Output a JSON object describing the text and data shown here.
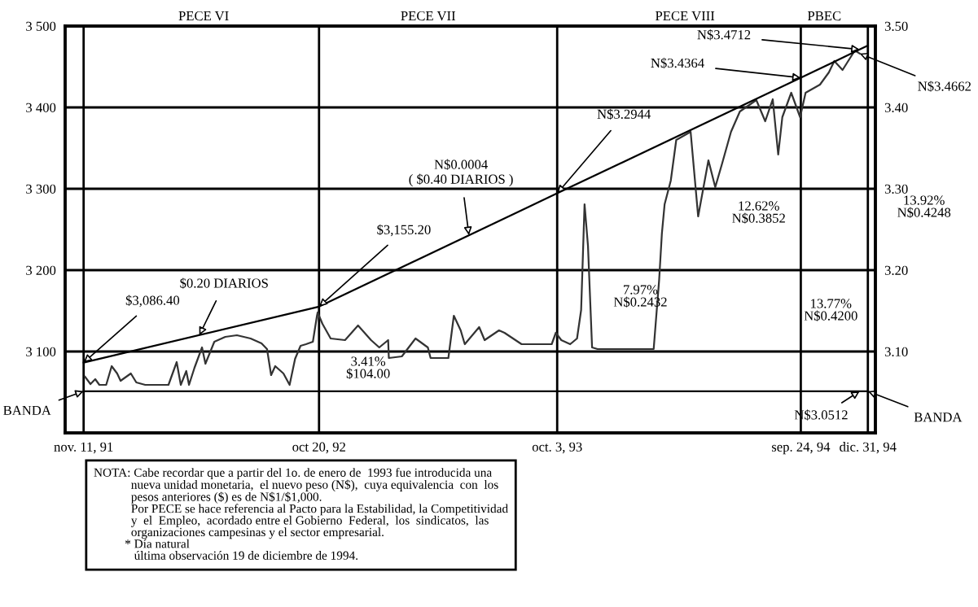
{
  "chart_data": {
    "type": "line",
    "xlim": [
      "1991-10-15",
      "1995-01-11"
    ],
    "xticks": [
      {
        "value": "1991-11-11",
        "label": "nov. 11, 91"
      },
      {
        "value": "1992-10-20",
        "label": "oct 20, 92"
      },
      {
        "value": "1993-10-03",
        "label": "oct. 3, 93"
      },
      {
        "value": "1994-09-24",
        "label": "sep. 24, 94"
      },
      {
        "value": "1994-12-31",
        "label": "dic. 31, 94"
      }
    ],
    "ylim": [
      3000,
      3500
    ],
    "yticks": [
      {
        "value": 3100,
        "label": "3 100"
      },
      {
        "value": 3200,
        "label": "3 200"
      },
      {
        "value": 3300,
        "label": "3 300"
      },
      {
        "value": 3400,
        "label": "3 400"
      },
      {
        "value": 3500,
        "label": "3 500"
      }
    ],
    "y2lim": [
      3.0,
      3.5
    ],
    "y2ticks": [
      {
        "value": 3.1,
        "label": "3.10"
      },
      {
        "value": 3.2,
        "label": "3.20"
      },
      {
        "value": 3.3,
        "label": "3.30"
      },
      {
        "value": 3.4,
        "label": "3.40"
      },
      {
        "value": 3.5,
        "label": "3.50"
      }
    ],
    "grid": true,
    "series": [
      {
        "color": "#333333",
        "x": [
          "1991-11-13",
          "1991-11-21",
          "1991-11-28",
          "1991-12-04",
          "1991-12-14",
          "1991-12-22",
          "1991-12-30",
          "1992-01-04",
          "1992-01-19",
          "1992-01-27",
          "1992-02-09",
          "1992-03-14",
          "1992-03-26",
          "1992-04-01",
          "1992-04-09",
          "1992-04-13",
          "1992-04-21",
          "1992-05-02",
          "1992-05-07",
          "1992-05-20",
          "1992-06-05",
          "1992-06-22",
          "1992-07-12",
          "1992-07-28",
          "1992-08-05",
          "1992-08-11",
          "1992-08-17",
          "1992-08-29",
          "1992-09-07",
          "1992-09-15",
          "1992-09-23",
          "1992-10-01",
          "1992-10-11",
          "1992-10-17",
          "1992-10-18",
          "1992-10-25",
          "1992-11-06",
          "1992-11-27",
          "1992-12-16",
          "1993-01-04",
          "1993-01-16",
          "1993-01-29",
          "1993-01-30",
          "1993-02-18",
          "1993-03-10",
          "1993-03-28",
          "1993-04-01",
          "1993-04-27",
          "1993-05-05",
          "1993-05-15",
          "1993-05-21",
          "1993-06-11",
          "1993-06-19",
          "1993-07-10",
          "1993-07-18",
          "1993-08-12",
          "1993-09-06",
          "1993-09-25",
          "1993-10-01",
          "1993-10-09",
          "1993-10-22",
          "1993-11-01",
          "1993-11-07",
          "1993-11-12",
          "1993-11-17",
          "1993-11-23",
          "1993-12-01",
          "1994-01-14",
          "1994-02-21",
          "1994-03-01",
          "1994-03-05",
          "1994-03-09",
          "1994-03-18",
          "1994-03-26",
          "1994-04-16",
          "1994-04-27",
          "1994-05-12",
          "1994-05-22",
          "1994-06-01",
          "1994-06-14",
          "1994-06-27",
          "1994-07-21",
          "1994-08-03",
          "1994-08-14",
          "1994-08-22",
          "1994-08-28",
          "1994-09-10",
          "1994-09-23",
          "1994-10-01",
          "1994-10-22",
          "1994-11-04",
          "1994-11-12",
          "1994-11-24",
          "1994-12-12",
          "1994-12-19"
        ],
        "values": [
          3069,
          3060,
          3066,
          3059,
          3059,
          3082,
          3073,
          3064,
          3073,
          3062,
          3059,
          3059,
          3087,
          3059,
          3076,
          3059,
          3080,
          3105,
          3085,
          3112,
          3118,
          3120,
          3116,
          3110,
          3103,
          3071,
          3082,
          3073,
          3059,
          3091,
          3107,
          3109,
          3112,
          3144,
          3148,
          3134,
          3116,
          3114,
          3132,
          3114,
          3105,
          3114,
          3092,
          3094,
          3116,
          3105,
          3092,
          3092,
          3144,
          3126,
          3109,
          3130,
          3114,
          3126,
          3123,
          3109,
          3109,
          3109,
          3123,
          3114,
          3109,
          3116,
          3151,
          3281,
          3230,
          3105,
          3103,
          3103,
          3103,
          3188,
          3245,
          3281,
          3310,
          3360,
          3370,
          3266,
          3335,
          3302,
          3331,
          3370,
          3395,
          3409,
          3383,
          3410,
          3342,
          3388,
          3418,
          3388,
          3418,
          3428,
          3443,
          3457,
          3446,
          3470,
          3466.2
        ]
      },
      {
        "color": "#000000",
        "x": [
          "1991-11-11",
          "1992-10-20",
          "1993-10-03",
          "1994-09-24",
          "1994-12-19",
          "1994-12-31"
        ],
        "values": [
          3086.4,
          3155.2,
          3294.4,
          3436.4,
          3471.2,
          3476.0
        ]
      },
      {
        "color": "#000000",
        "x": [
          "1991-11-11",
          "1994-12-31"
        ],
        "values": [
          3051.2,
          3051.2
        ]
      }
    ],
    "annotations": [
      {
        "text": "$3,086.40",
        "x": "1991-11-11",
        "y": 3086.4
      },
      {
        "text": "$0.20 DIARIOS",
        "x": "1992-04-28",
        "y": 3120
      },
      {
        "text": "$3,155.20",
        "x": "1992-10-20",
        "y": 3155.2
      },
      {
        "text": "N$0.0004\n( $0.40 DIARIOS )",
        "x": "1993-05-27",
        "y": 3243
      },
      {
        "text": "N$3.2944",
        "x": "1993-10-03",
        "y": 3294.4
      },
      {
        "text": "N$3.4364",
        "x": "1994-09-24",
        "y": 3436.4
      },
      {
        "text": "N$3.4712",
        "x": "1994-12-19",
        "y": 3471.2
      },
      {
        "text": "N$3.4662",
        "x": "1994-12-19",
        "y": 3466.2
      },
      {
        "text": "N$3.0512",
        "x": "1994-12-19",
        "y": 3051.2
      },
      {
        "text": "BANDA",
        "x": "1991-11-11",
        "y": 3051.2
      },
      {
        "text": "BANDA",
        "x": "1994-12-31",
        "y": 3051.2
      },
      "PECE VI",
      "PECE VII",
      "PECE VIII",
      "PBEC",
      "3.41%\n$104.00",
      "7.97%\nN$0.2432",
      "12.62%\nN$0.3852",
      "13.77%\nN$0.4200",
      "13.92%\nN$0.4248",
      "NOTA: Cabe recordar que a partir del 1o. de enero de  1993 fue introducida una\n            nueva unidad monetaria,  el nuevo peso (N$),  cuya equivalencia  con  los\n            pesos anteriores ($) es de N$1/$1,000.\n            Por PECE se hace referencia al Pacto para la Estabilidad, la Competitividad\n            y  el  Empleo,  acordado entre el Gobierno  Federal,  los  sindicatos,  las\n            organizaciones campesinas y el sector empresarial.\n          * Día natural\n             última observación 19 de diciembre de 1994."
    ]
  }
}
